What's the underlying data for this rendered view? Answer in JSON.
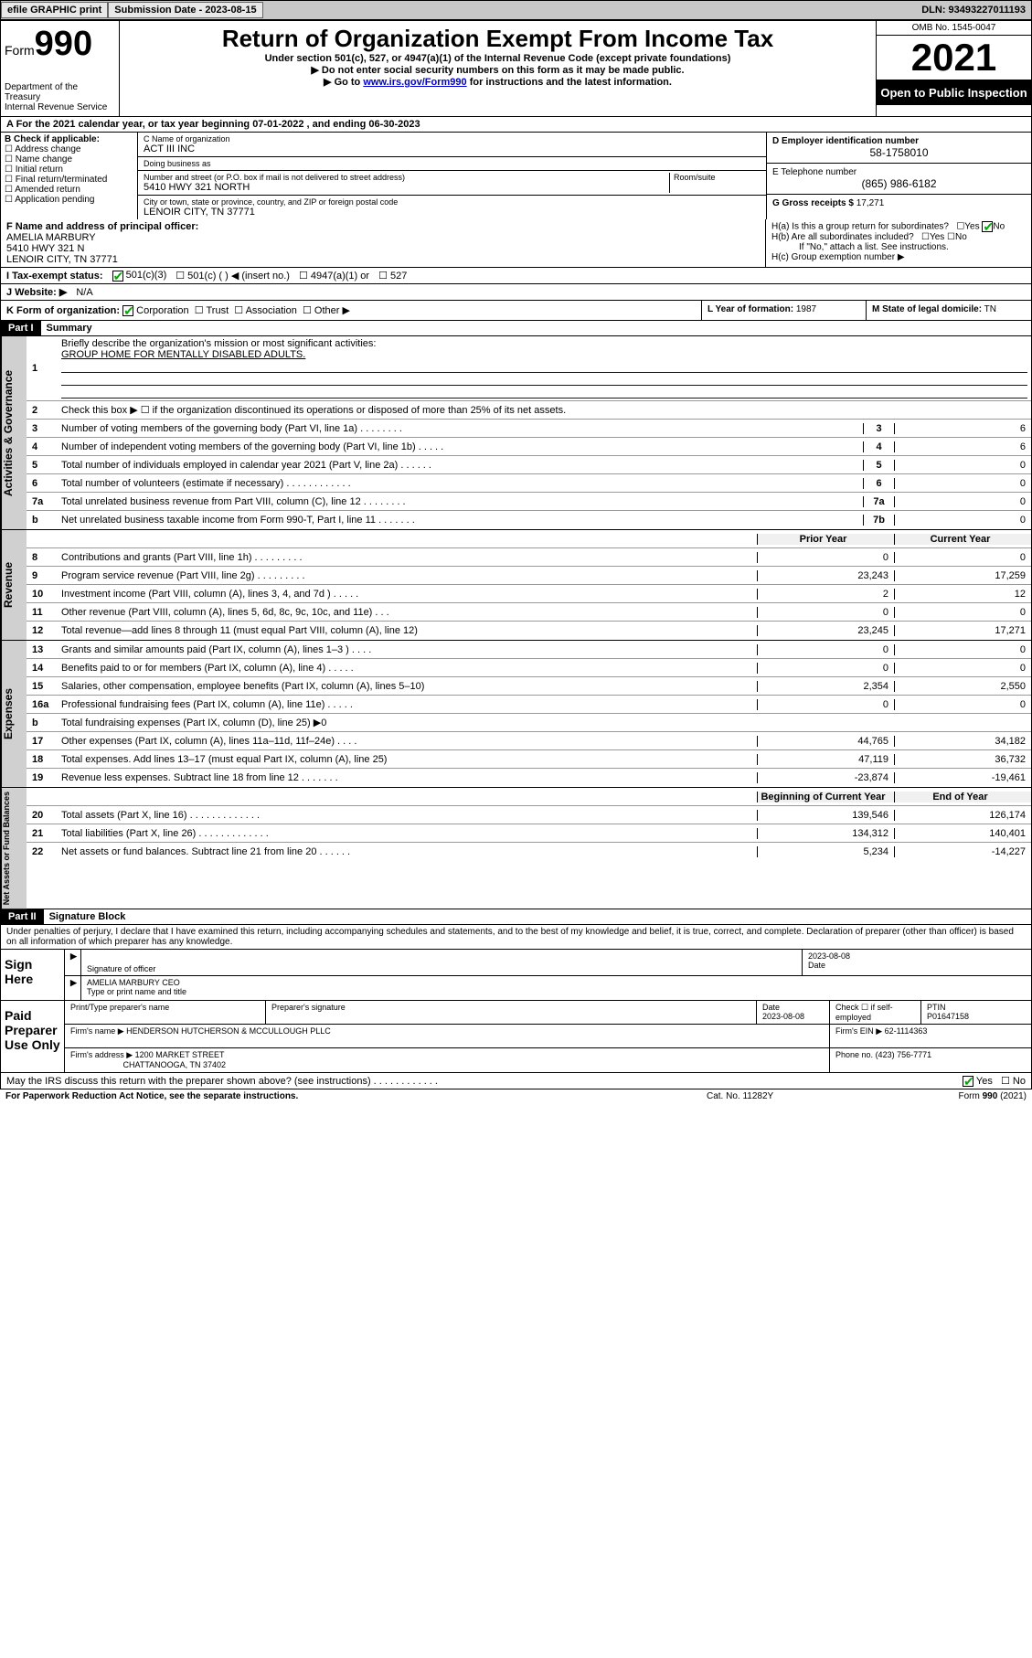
{
  "topbar": {
    "efile": "efile GRAPHIC print",
    "submission_label": "Submission Date - 2023-08-15",
    "dln": "DLN: 93493227011193"
  },
  "header": {
    "form_label": "Form",
    "form_number": "990",
    "dept": "Department of the Treasury",
    "irs": "Internal Revenue Service",
    "title": "Return of Organization Exempt From Income Tax",
    "sub": "Under section 501(c), 527, or 4947(a)(1) of the Internal Revenue Code (except private foundations)",
    "note1": "▶ Do not enter social security numbers on this form as it may be made public.",
    "note2_pre": "▶ Go to ",
    "note2_link": "www.irs.gov/Form990",
    "note2_post": " for instructions and the latest information.",
    "omb": "OMB No. 1545-0047",
    "year": "2021",
    "open": "Open to Public Inspection"
  },
  "rowA": "A For the 2021 calendar year, or tax year beginning 07-01-2022    , and ending 06-30-2023",
  "colB": {
    "header": "B Check if applicable:",
    "items": [
      "Address change",
      "Name change",
      "Initial return",
      "Final return/terminated",
      "Amended return",
      "Application pending"
    ]
  },
  "colC": {
    "name_lbl": "C Name of organization",
    "name": "ACT III INC",
    "dba_lbl": "Doing business as",
    "dba": "",
    "addr_lbl": "Number and street (or P.O. box if mail is not delivered to street address)",
    "room_lbl": "Room/suite",
    "addr": "5410 HWY 321 NORTH",
    "city_lbl": "City or town, state or province, country, and ZIP or foreign postal code",
    "city": "LENOIR CITY, TN  37771"
  },
  "colD": {
    "ein_lbl": "D Employer identification number",
    "ein": "58-1758010",
    "phone_lbl": "E Telephone number",
    "phone": "(865) 986-6182",
    "gross_lbl": "G Gross receipts $",
    "gross": "17,271"
  },
  "rowF": {
    "lbl": "F  Name and address of principal officer:",
    "name": "AMELIA MARBURY",
    "addr1": "5410 HWY 321 N",
    "addr2": "LENOIR CITY, TN  37771"
  },
  "rowH": {
    "a": "H(a)  Is this a group return for subordinates?",
    "b": "H(b)  Are all subordinates included?",
    "b_note": "If \"No,\" attach a list. See instructions.",
    "c": "H(c)  Group exemption number ▶"
  },
  "rowI": {
    "lbl": "I    Tax-exempt status:",
    "opts": [
      "501(c)(3)",
      "501(c) (  ) ◀ (insert no.)",
      "4947(a)(1) or",
      "527"
    ]
  },
  "rowJ": {
    "lbl": "J    Website: ▶",
    "val": "N/A"
  },
  "rowK": {
    "k": "K Form of organization:",
    "k_opts": [
      "Corporation",
      "Trust",
      "Association",
      "Other ▶"
    ],
    "l_lbl": "L Year of formation:",
    "l_val": "1987",
    "m_lbl": "M State of legal domicile:",
    "m_val": "TN"
  },
  "part1": {
    "label": "Part I",
    "title": "Summary"
  },
  "summary": {
    "q1": "Briefly describe the organization's mission or most significant activities:",
    "mission": "GROUP HOME FOR MENTALLY DISABLED ADULTS.",
    "q2": "Check this box ▶ ☐  if the organization discontinued its operations or disposed of more than 25% of its net assets.",
    "lines_gov": [
      {
        "n": "3",
        "d": "Number of voting members of the governing body (Part VI, line 1a)  .    .    .    .    .    .    .    .",
        "b": "3",
        "v": "6"
      },
      {
        "n": "4",
        "d": "Number of independent voting members of the governing body (Part VI, line 1b)    .    .    .    .    .",
        "b": "4",
        "v": "6"
      },
      {
        "n": "5",
        "d": "Total number of individuals employed in calendar year 2021 (Part V, line 2a)    .    .    .    .    .    .",
        "b": "5",
        "v": "0"
      },
      {
        "n": "6",
        "d": "Total number of volunteers (estimate if necessary)    .    .    .    .    .    .    .    .    .    .    .    .",
        "b": "6",
        "v": "0"
      },
      {
        "n": "7a",
        "d": "Total unrelated business revenue from Part VIII, column (C), line 12    .    .    .    .    .    .    .    .",
        "b": "7a",
        "v": "0"
      },
      {
        "n": "b",
        "d": "Net unrelated business taxable income from Form 990-T, Part I, line 11    .    .    .    .    .    .    .",
        "b": "7b",
        "v": "0"
      }
    ],
    "col_hdr1": "Prior Year",
    "col_hdr2": "Current Year",
    "revenue": [
      {
        "n": "8",
        "d": "Contributions and grants (Part VIII, line 1h)   .    .    .    .    .    .    .    .    .",
        "v1": "0",
        "v2": "0"
      },
      {
        "n": "9",
        "d": "Program service revenue (Part VIII, line 2g)   .    .    .    .    .    .    .    .    .",
        "v1": "23,243",
        "v2": "17,259"
      },
      {
        "n": "10",
        "d": "Investment income (Part VIII, column (A), lines 3, 4, and 7d )   .    .    .    .    .",
        "v1": "2",
        "v2": "12"
      },
      {
        "n": "11",
        "d": "Other revenue (Part VIII, column (A), lines 5, 6d, 8c, 9c, 10c, and 11e)   .    .    .",
        "v1": "0",
        "v2": "0"
      },
      {
        "n": "12",
        "d": "Total revenue—add lines 8 through 11 (must equal Part VIII, column (A), line 12)",
        "v1": "23,245",
        "v2": "17,271"
      }
    ],
    "expenses": [
      {
        "n": "13",
        "d": "Grants and similar amounts paid (Part IX, column (A), lines 1–3 )   .    .    .    .",
        "v1": "0",
        "v2": "0"
      },
      {
        "n": "14",
        "d": "Benefits paid to or for members (Part IX, column (A), line 4)   .    .    .    .    .",
        "v1": "0",
        "v2": "0"
      },
      {
        "n": "15",
        "d": "Salaries, other compensation, employee benefits (Part IX, column (A), lines 5–10)",
        "v1": "2,354",
        "v2": "2,550"
      },
      {
        "n": "16a",
        "d": "Professional fundraising fees (Part IX, column (A), line 11e)   .    .    .    .    .",
        "v1": "0",
        "v2": "0"
      },
      {
        "n": "b",
        "d": "Total fundraising expenses (Part IX, column (D), line 25) ▶0",
        "v1": "",
        "v2": "",
        "shade": true
      },
      {
        "n": "17",
        "d": "Other expenses (Part IX, column (A), lines 11a–11d, 11f–24e)   .    .    .    .",
        "v1": "44,765",
        "v2": "34,182"
      },
      {
        "n": "18",
        "d": "Total expenses. Add lines 13–17 (must equal Part IX, column (A), line 25)",
        "v1": "47,119",
        "v2": "36,732"
      },
      {
        "n": "19",
        "d": "Revenue less expenses. Subtract line 18 from line 12   .    .    .    .    .    .    .",
        "v1": "-23,874",
        "v2": "-19,461"
      }
    ],
    "na_hdr1": "Beginning of Current Year",
    "na_hdr2": "End of Year",
    "netassets": [
      {
        "n": "20",
        "d": "Total assets (Part X, line 16)   .    .    .    .    .    .    .    .    .    .    .    .    .",
        "v1": "139,546",
        "v2": "126,174"
      },
      {
        "n": "21",
        "d": "Total liabilities (Part X, line 26)   .    .    .    .    .    .    .    .    .    .    .    .    .",
        "v1": "134,312",
        "v2": "140,401"
      },
      {
        "n": "22",
        "d": "Net assets or fund balances. Subtract line 21 from line 20   .    .    .    .    .    .",
        "v1": "5,234",
        "v2": "-14,227"
      }
    ]
  },
  "part2": {
    "label": "Part II",
    "title": "Signature Block"
  },
  "declaration": "Under penalties of perjury, I declare that I have examined this return, including accompanying schedules and statements, and to the best of my knowledge and belief, it is true, correct, and complete. Declaration of preparer (other than officer) is based on all information of which preparer has any knowledge.",
  "sign": {
    "here": "Sign Here",
    "sig_lbl": "Signature of officer",
    "date": "2023-08-08",
    "date_lbl": "Date",
    "name": "AMELIA MARBURY CEO",
    "name_lbl": "Type or print name and title"
  },
  "paid": {
    "here": "Paid Preparer Use Only",
    "col1": "Print/Type preparer's name",
    "col2": "Preparer's signature",
    "col3_lbl": "Date",
    "col3": "2023-08-08",
    "col4_lbl": "Check ☐ if self-employed",
    "col5_lbl": "PTIN",
    "col5": "P01647158",
    "firm_lbl": "Firm's name    ▶",
    "firm": "HENDERSON HUTCHERSON & MCCULLOUGH PLLC",
    "ein_lbl": "Firm's EIN ▶",
    "ein": "62-1114363",
    "addr_lbl": "Firm's address ▶",
    "addr1": "1200 MARKET STREET",
    "addr2": "CHATTANOOGA, TN  37402",
    "phone_lbl": "Phone no.",
    "phone": "(423) 756-7771"
  },
  "discuss": "May the IRS discuss this return with the preparer shown above? (see instructions)   .    .    .    .    .    .    .    .    .    .    .    .",
  "footer": {
    "left": "For Paperwork Reduction Act Notice, see the separate instructions.",
    "mid": "Cat. No. 11282Y",
    "right_pre": "Form ",
    "right_bold": "990",
    "right_post": " (2021)"
  },
  "side_labels": {
    "gov": "Activities & Governance",
    "rev": "Revenue",
    "exp": "Expenses",
    "na": "Net Assets or Fund Balances"
  }
}
